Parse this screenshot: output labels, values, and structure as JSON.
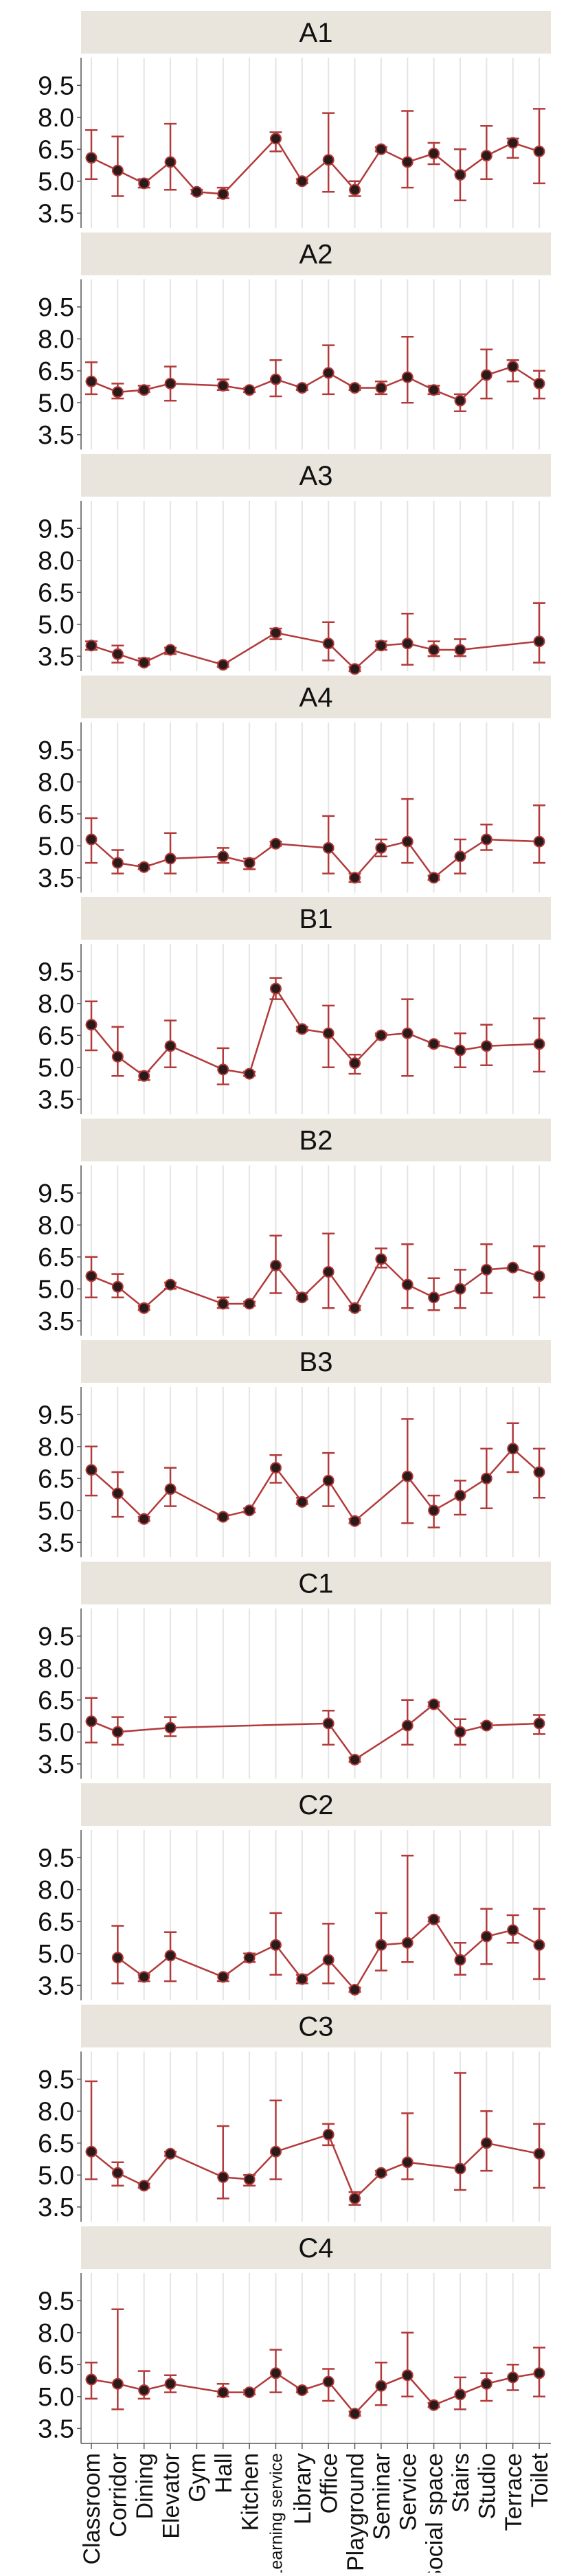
{
  "chart_data": {
    "type": "line",
    "facet_layout": "vertical strips, shared x-axis",
    "title": "",
    "xlabel": "",
    "ylabel": "",
    "ylim": [
      2.8,
      10.8
    ],
    "y_ticks": [
      3.5,
      5.0,
      6.5,
      8.0,
      9.5
    ],
    "y_tick_labels": [
      "3.5",
      "5.0",
      "6.5",
      "8.0",
      "9.5"
    ],
    "categories": [
      "Classroom",
      "Corridor",
      "Dining",
      "Elevator",
      "Gym",
      "Hall",
      "Kitchen",
      "Learning service",
      "Library",
      "Office",
      "Playground",
      "Seminar",
      "Service",
      "Social space",
      "Stairs",
      "Studio",
      "Terrace",
      "Toilet"
    ],
    "grid": "vertical gridlines at categories",
    "colors": {
      "line": "#b23a3a",
      "point": "#2a1a1a",
      "errorbar": "#b23a3a",
      "strip_bg": "#e9e5dc",
      "grid": "#e4e4e4"
    },
    "panels": [
      {
        "label": "A1",
        "mean": [
          6.1,
          5.5,
          4.9,
          5.9,
          4.5,
          4.4,
          null,
          7.0,
          5.0,
          6.0,
          4.6,
          6.5,
          5.9,
          6.3,
          5.3,
          6.2,
          6.8,
          6.4
        ],
        "lower": [
          5.1,
          4.3,
          4.7,
          4.6,
          4.4,
          4.2,
          null,
          6.4,
          4.9,
          4.5,
          4.3,
          6.4,
          4.7,
          5.8,
          4.1,
          5.1,
          6.1,
          4.9
        ],
        "upper": [
          7.4,
          7.1,
          5.1,
          7.7,
          4.6,
          4.7,
          null,
          7.3,
          5.1,
          8.2,
          5.0,
          6.6,
          8.3,
          6.8,
          6.5,
          7.6,
          7.0,
          8.4
        ]
      },
      {
        "label": "A2",
        "mean": [
          6.0,
          5.5,
          5.6,
          5.9,
          null,
          5.8,
          5.6,
          6.1,
          5.7,
          6.4,
          5.7,
          5.7,
          6.2,
          5.6,
          5.1,
          6.3,
          6.7,
          5.9
        ],
        "lower": [
          5.4,
          5.2,
          5.5,
          5.1,
          null,
          5.6,
          5.5,
          5.3,
          5.6,
          5.4,
          5.6,
          5.4,
          5.0,
          5.4,
          4.6,
          5.2,
          6.0,
          5.2
        ],
        "upper": [
          6.9,
          5.9,
          5.8,
          6.7,
          null,
          6.1,
          5.7,
          7.0,
          5.8,
          7.7,
          5.8,
          6.0,
          8.1,
          5.8,
          5.4,
          7.5,
          7.0,
          6.5
        ]
      },
      {
        "label": "A3",
        "mean": [
          4.0,
          3.6,
          3.2,
          3.8,
          null,
          3.1,
          null,
          4.6,
          null,
          4.1,
          2.9,
          4.0,
          4.1,
          3.8,
          3.8,
          null,
          null,
          4.2
        ],
        "lower": [
          3.8,
          3.2,
          3.1,
          3.6,
          null,
          3.0,
          null,
          4.3,
          null,
          3.3,
          2.8,
          3.8,
          3.1,
          3.5,
          3.5,
          null,
          null,
          3.2
        ],
        "upper": [
          4.2,
          4.0,
          3.4,
          3.9,
          null,
          3.2,
          null,
          4.8,
          null,
          5.1,
          3.0,
          4.2,
          5.5,
          4.2,
          4.3,
          null,
          null,
          6.0
        ]
      },
      {
        "label": "A4",
        "mean": [
          5.3,
          4.2,
          4.0,
          4.4,
          null,
          4.5,
          4.2,
          5.1,
          null,
          4.9,
          3.5,
          4.9,
          5.2,
          3.5,
          4.5,
          5.3,
          null,
          5.2
        ],
        "lower": [
          4.2,
          3.7,
          3.9,
          3.7,
          null,
          4.2,
          3.9,
          5.0,
          null,
          3.7,
          3.3,
          4.5,
          4.2,
          3.4,
          3.7,
          4.8,
          null,
          4.2
        ],
        "upper": [
          6.3,
          4.8,
          4.1,
          5.6,
          null,
          4.9,
          4.4,
          5.2,
          null,
          6.4,
          3.7,
          5.3,
          7.2,
          3.6,
          5.3,
          6.0,
          null,
          6.9
        ]
      },
      {
        "label": "B1",
        "mean": [
          7.0,
          5.5,
          4.6,
          6.0,
          null,
          4.9,
          4.7,
          8.7,
          6.8,
          6.6,
          5.2,
          6.5,
          6.6,
          6.1,
          5.8,
          6.0,
          null,
          6.1
        ],
        "lower": [
          5.8,
          4.6,
          4.4,
          5.0,
          null,
          4.2,
          4.6,
          8.2,
          6.7,
          5.0,
          4.7,
          6.5,
          4.6,
          6.0,
          5.0,
          5.1,
          null,
          4.8
        ],
        "upper": [
          8.1,
          6.9,
          4.8,
          7.2,
          null,
          5.9,
          4.8,
          9.2,
          6.9,
          7.9,
          5.6,
          6.6,
          8.2,
          6.2,
          6.6,
          7.0,
          null,
          7.3
        ]
      },
      {
        "label": "B2",
        "mean": [
          5.6,
          5.1,
          4.1,
          5.2,
          null,
          4.3,
          4.3,
          6.1,
          4.6,
          5.8,
          4.1,
          6.4,
          5.2,
          4.6,
          5.0,
          5.9,
          6.0,
          5.6
        ],
        "lower": [
          4.6,
          4.6,
          4.0,
          5.0,
          null,
          4.1,
          4.2,
          4.8,
          4.5,
          4.1,
          4.0,
          6.0,
          4.1,
          4.0,
          4.1,
          4.8,
          5.9,
          4.6
        ],
        "upper": [
          6.5,
          5.7,
          4.2,
          5.3,
          null,
          4.6,
          4.4,
          7.5,
          4.8,
          7.6,
          4.2,
          6.9,
          7.1,
          5.5,
          5.9,
          7.1,
          6.0,
          7.0
        ]
      },
      {
        "label": "B3",
        "mean": [
          6.9,
          5.8,
          4.6,
          6.0,
          null,
          4.7,
          5.0,
          7.0,
          5.4,
          6.4,
          4.5,
          null,
          6.6,
          5.0,
          5.7,
          6.5,
          7.9,
          6.8
        ],
        "lower": [
          5.7,
          4.7,
          4.5,
          5.2,
          null,
          4.6,
          4.9,
          6.3,
          5.3,
          5.2,
          4.4,
          null,
          4.4,
          4.2,
          4.8,
          5.1,
          6.8,
          5.6
        ],
        "upper": [
          8.0,
          6.8,
          4.7,
          7.0,
          null,
          4.8,
          5.1,
          7.6,
          5.6,
          7.7,
          4.6,
          null,
          9.3,
          5.7,
          6.4,
          7.9,
          9.1,
          7.9
        ]
      },
      {
        "label": "C1",
        "mean": [
          5.5,
          5.0,
          null,
          5.2,
          null,
          null,
          null,
          null,
          null,
          5.4,
          3.7,
          null,
          5.3,
          6.3,
          5.0,
          5.3,
          null,
          5.4
        ],
        "lower": [
          4.5,
          4.4,
          null,
          4.8,
          null,
          null,
          null,
          null,
          null,
          4.4,
          3.6,
          null,
          4.4,
          6.2,
          4.4,
          5.2,
          null,
          4.9
        ],
        "upper": [
          6.6,
          5.7,
          null,
          5.7,
          null,
          null,
          null,
          null,
          null,
          6.0,
          3.8,
          null,
          6.5,
          6.4,
          5.6,
          5.4,
          null,
          5.8
        ]
      },
      {
        "label": "C2",
        "mean": [
          null,
          4.8,
          3.9,
          4.9,
          null,
          3.9,
          4.8,
          5.4,
          3.8,
          4.7,
          3.3,
          5.4,
          5.5,
          6.6,
          4.7,
          5.8,
          6.1,
          5.4
        ],
        "lower": [
          null,
          3.6,
          3.7,
          3.7,
          null,
          3.7,
          4.6,
          4.0,
          3.6,
          3.6,
          3.2,
          4.2,
          4.6,
          6.5,
          4.0,
          4.5,
          5.5,
          3.8
        ],
        "upper": [
          null,
          6.3,
          4.0,
          6.0,
          null,
          4.0,
          5.0,
          6.9,
          4.0,
          6.4,
          3.4,
          6.9,
          9.6,
          6.7,
          5.5,
          7.1,
          6.8,
          7.1
        ]
      },
      {
        "label": "C3",
        "mean": [
          6.1,
          5.1,
          4.5,
          6.0,
          null,
          4.9,
          4.8,
          6.1,
          null,
          6.9,
          3.9,
          5.1,
          5.6,
          null,
          5.3,
          6.5,
          null,
          6.0
        ],
        "lower": [
          4.8,
          4.5,
          4.4,
          5.9,
          null,
          3.9,
          4.5,
          4.8,
          null,
          6.4,
          3.6,
          5.0,
          4.8,
          null,
          4.3,
          5.2,
          null,
          4.4
        ],
        "upper": [
          9.4,
          5.6,
          4.6,
          6.1,
          null,
          7.3,
          5.0,
          8.5,
          null,
          7.4,
          4.2,
          5.2,
          7.9,
          null,
          9.8,
          8.0,
          null,
          7.4
        ]
      },
      {
        "label": "C4",
        "mean": [
          5.8,
          5.6,
          5.3,
          5.6,
          null,
          5.2,
          5.2,
          6.1,
          5.3,
          5.7,
          4.2,
          5.5,
          6.0,
          4.6,
          5.1,
          5.6,
          5.9,
          6.1
        ],
        "lower": [
          4.9,
          4.4,
          4.9,
          5.2,
          null,
          5.0,
          5.1,
          5.2,
          5.2,
          4.8,
          4.1,
          4.6,
          5.0,
          4.5,
          4.4,
          4.8,
          5.3,
          5.0
        ],
        "upper": [
          6.6,
          9.1,
          6.2,
          6.0,
          null,
          5.6,
          5.3,
          7.2,
          5.4,
          6.3,
          4.3,
          6.6,
          8.0,
          4.7,
          5.9,
          6.1,
          6.5,
          7.3
        ]
      }
    ]
  }
}
